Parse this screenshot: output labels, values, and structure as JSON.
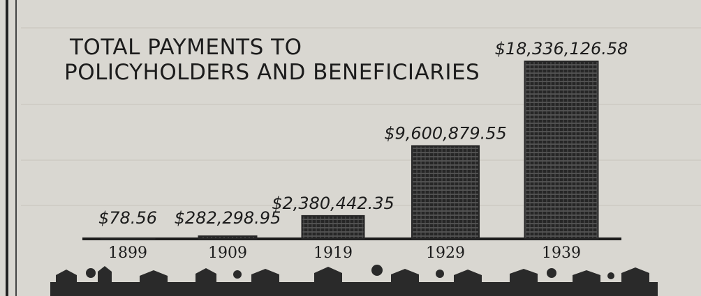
{
  "chart_data": {
    "type": "bar",
    "title": [
      "TOTAL PAYMENTS TO",
      "POLICYHOLDERS AND BENEFICIARIES"
    ],
    "categories": [
      "1899",
      "1909",
      "1919",
      "1929",
      "1939"
    ],
    "values": [
      78.56,
      282298.95,
      2380442.35,
      9600879.55,
      18336126.58
    ],
    "value_labels": [
      "$78.56",
      "$282,298.95",
      "$2,380,442.35",
      "$9,600,879.55",
      "$18,336,126.58"
    ],
    "color": "#262626"
  }
}
